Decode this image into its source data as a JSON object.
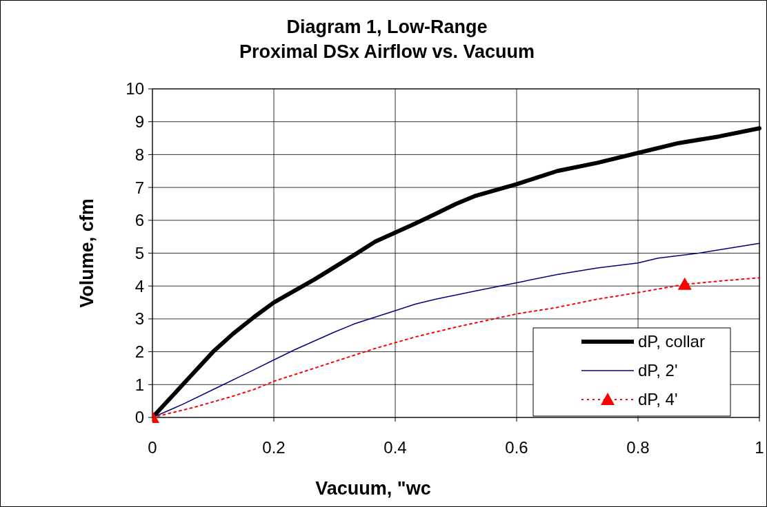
{
  "chart_data": {
    "type": "line",
    "title": "Diagram 1, Low-Range\nProximal DSx Airflow vs. Vacuum",
    "xlabel": "Vacuum, \"wc",
    "ylabel": "Volume, cfm",
    "xlim": [
      0,
      1
    ],
    "xticks": [
      0,
      0.2,
      0.4,
      0.6,
      0.8,
      1
    ],
    "ylim": [
      0,
      10
    ],
    "yticks": [
      0,
      1,
      2,
      3,
      4,
      5,
      6,
      7,
      8,
      9,
      10
    ],
    "grid": true,
    "legend": "bottom right",
    "series": [
      {
        "name": "dP, collar",
        "color": "#000000",
        "line_style": "solid",
        "x": [
          0,
          0.05,
          0.1,
          0.133,
          0.167,
          0.2,
          0.267,
          0.333,
          0.367,
          0.433,
          0.467,
          0.5,
          0.533,
          0.6,
          0.667,
          0.733,
          0.8,
          0.867,
          0.933,
          1
        ],
        "values": [
          0,
          1,
          2,
          2.55,
          3.05,
          3.5,
          4.2,
          4.95,
          5.35,
          5.9,
          6.2,
          6.5,
          6.75,
          7.1,
          7.5,
          7.75,
          8.05,
          8.35,
          8.55,
          8.8
        ]
      },
      {
        "name": "dP, 2'",
        "color": "#000080",
        "line_style": "solid",
        "x": [
          0,
          0.05,
          0.1,
          0.167,
          0.2,
          0.233,
          0.3,
          0.333,
          0.4,
          0.433,
          0.467,
          0.533,
          0.6,
          0.667,
          0.733,
          0.8,
          0.833,
          0.9,
          0.933,
          1
        ],
        "values": [
          0,
          0.4,
          0.85,
          1.45,
          1.75,
          2.05,
          2.6,
          2.85,
          3.25,
          3.45,
          3.6,
          3.85,
          4.1,
          4.35,
          4.55,
          4.7,
          4.85,
          5,
          5.1,
          5.3
        ]
      },
      {
        "name": "dP, 4'",
        "color": "#ff0000",
        "line_style": "dotted",
        "x": [
          0,
          0.067,
          0.133,
          0.167,
          0.2,
          0.267,
          0.3,
          0.367,
          0.433,
          0.5,
          0.6,
          0.667,
          0.733,
          0.8,
          0.877,
          0.933,
          1
        ],
        "values": [
          0,
          0.3,
          0.65,
          0.85,
          1.1,
          1.5,
          1.7,
          2.1,
          2.45,
          2.75,
          3.15,
          3.35,
          3.6,
          3.8,
          4.05,
          4.15,
          4.25
        ]
      },
      {
        "type": "scatter",
        "color": "#ff0000",
        "marker": "triangle",
        "x": [
          0,
          0.877
        ],
        "values": [
          0,
          4.05
        ]
      }
    ]
  }
}
